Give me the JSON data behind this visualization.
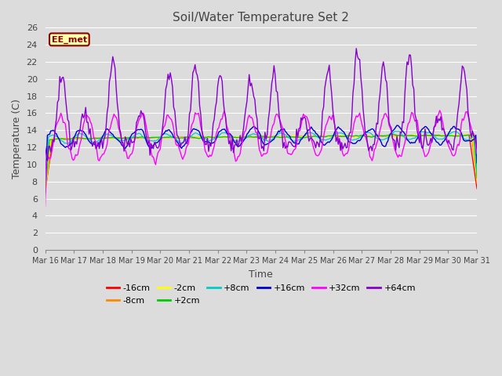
{
  "title": "Soil/Water Temperature Set 2",
  "xlabel": "Time",
  "ylabel": "Temperature (C)",
  "ylim": [
    0,
    26
  ],
  "yticks": [
    0,
    2,
    4,
    6,
    8,
    10,
    12,
    14,
    16,
    18,
    20,
    22,
    24,
    26
  ],
  "xtick_labels": [
    "Mar 16",
    "Mar 17",
    "Mar 18",
    "Mar 19",
    "Mar 20",
    "Mar 21",
    "Mar 22",
    "Mar 23",
    "Mar 24",
    "Mar 25",
    "Mar 26",
    "Mar 27",
    "Mar 28",
    "Mar 29",
    "Mar 30",
    "Mar 31"
  ],
  "series_colors": {
    "-16cm": "#ff0000",
    "-8cm": "#ff8800",
    "-2cm": "#ffff00",
    "+2cm": "#00cc00",
    "+8cm": "#00cccc",
    "+16cm": "#0000cc",
    "+32cm": "#ff00ff",
    "+64cm": "#8800cc"
  },
  "legend_label": "EE_met",
  "bg_color": "#dcdcdc",
  "grid_color": "#ffffff",
  "font_color": "#444444"
}
